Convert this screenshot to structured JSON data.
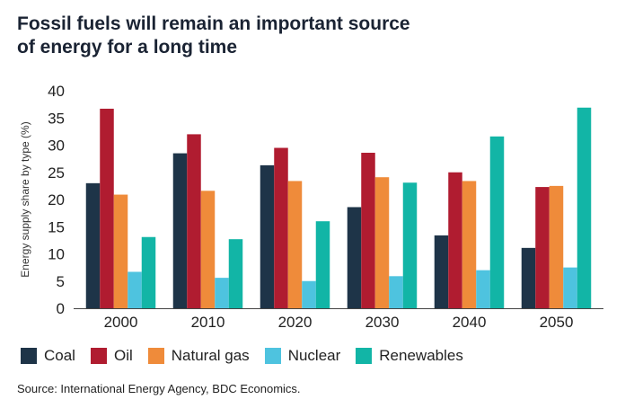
{
  "title_lines": [
    "Fossil fuels will remain an important source",
    "of energy for a long time"
  ],
  "source": "Source: International Energy Agency, BDC Economics.",
  "chart_data": {
    "type": "bar",
    "title": "Fossil fuels will remain an important source of energy for a long time",
    "ylabel": "Energy supply share by type (%)",
    "xlabel": "",
    "ylim": [
      0,
      40
    ],
    "yticks": [
      0,
      5,
      10,
      15,
      20,
      25,
      30,
      35,
      40
    ],
    "grid": false,
    "legend_position": "bottom",
    "categories": [
      "2000",
      "2010",
      "2020",
      "2030",
      "2040",
      "2050"
    ],
    "series": [
      {
        "name": "Coal",
        "color": "#1e3448",
        "values": [
          23,
          28.5,
          26.3,
          18.6,
          13.4,
          11.1
        ]
      },
      {
        "name": "Oil",
        "color": "#b01c30",
        "values": [
          36.7,
          32,
          29.5,
          28.6,
          25,
          22.3
        ]
      },
      {
        "name": "Natural gas",
        "color": "#ef8b3a",
        "values": [
          20.9,
          21.6,
          23.4,
          24.1,
          23.4,
          22.5
        ]
      },
      {
        "name": "Nuclear",
        "color": "#4ec3df",
        "values": [
          6.7,
          5.6,
          5,
          5.9,
          7,
          7.5
        ]
      },
      {
        "name": "Renewables",
        "color": "#12b5a6",
        "values": [
          13.1,
          12.7,
          16,
          23.1,
          31.6,
          36.9
        ]
      }
    ]
  }
}
